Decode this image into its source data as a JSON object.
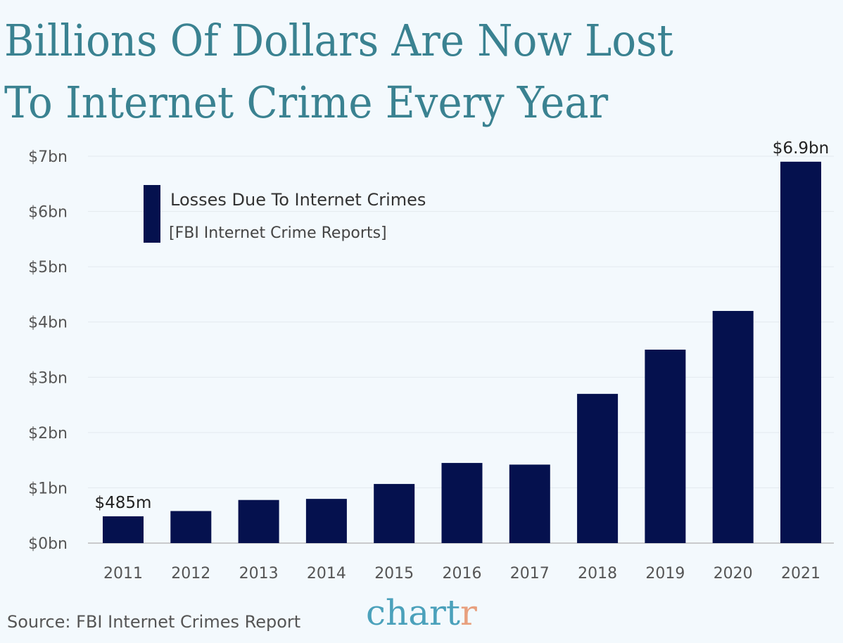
{
  "chart_data": {
    "type": "bar",
    "title": "Billions Of Dollars Are Now Lost To Internet Crime Every Year",
    "title_lines": [
      "Billions Of Dollars Are Now Lost",
      "To Internet Crime Every Year"
    ],
    "categories": [
      "2011",
      "2012",
      "2013",
      "2014",
      "2015",
      "2016",
      "2017",
      "2018",
      "2019",
      "2020",
      "2021"
    ],
    "series": [
      {
        "name": "Losses Due To Internet Crimes",
        "values": [
          0.485,
          0.58,
          0.78,
          0.8,
          1.07,
          1.45,
          1.42,
          2.7,
          3.5,
          4.2,
          6.9
        ],
        "color": "#05114e"
      }
    ],
    "legend_subtitle": "[FBI Internet Crime Reports]",
    "legend_placement": "top-left",
    "yticks": [
      "$0bn",
      "$1bn",
      "$2bn",
      "$3bn",
      "$4bn",
      "$5bn",
      "$6bn",
      "$7bn"
    ],
    "ylim": [
      0,
      7
    ],
    "grid": true,
    "annotations": [
      {
        "index": 0,
        "text": "$485m"
      },
      {
        "index": 10,
        "text": "$6.9bn"
      }
    ]
  },
  "source": "Source: FBI Internet Crimes Report",
  "logo": {
    "main": "chart",
    "accent": "r"
  },
  "colors": {
    "title": "#3a8291",
    "bar": "#05114e",
    "background": "#f3f9fd"
  }
}
